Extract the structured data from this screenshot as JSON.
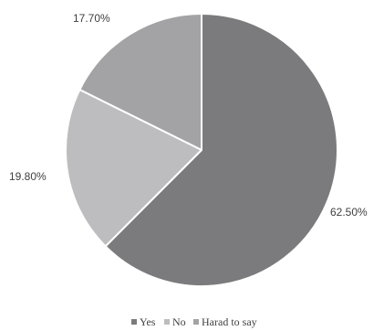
{
  "chart_data": {
    "type": "pie",
    "categories": [
      "Yes",
      "No",
      "Harad to say"
    ],
    "values": [
      62.5,
      19.8,
      17.7
    ],
    "data_labels": [
      "62.50%",
      "19.80%",
      "17.70%"
    ],
    "colors": [
      "#7b7b7d",
      "#bdbdbf",
      "#a3a3a5"
    ],
    "legend_position": "bottom"
  }
}
